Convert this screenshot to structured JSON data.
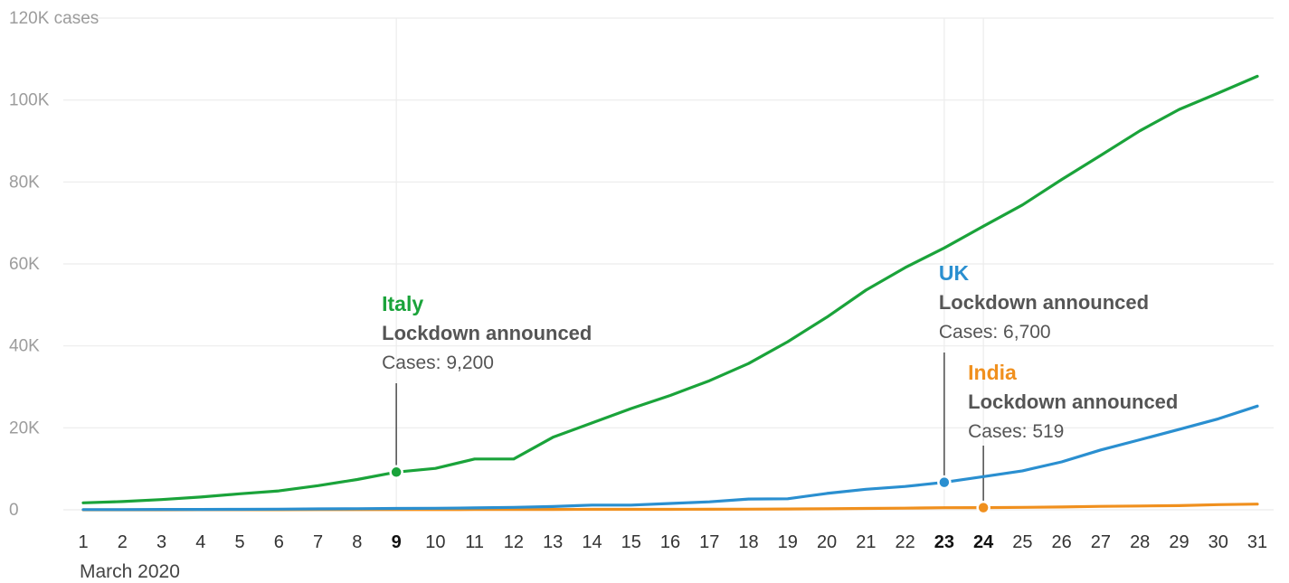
{
  "chart_data": {
    "type": "line",
    "xlabel": "March 2020",
    "ylim": [
      0,
      120000
    ],
    "yticks": [
      {
        "value": 0,
        "label": "0"
      },
      {
        "value": 20000,
        "label": "20K"
      },
      {
        "value": 40000,
        "label": "40K"
      },
      {
        "value": 60000,
        "label": "60K"
      },
      {
        "value": 80000,
        "label": "80K"
      },
      {
        "value": 100000,
        "label": "100K"
      },
      {
        "value": 120000,
        "label": "120K cases"
      }
    ],
    "x": [
      1,
      2,
      3,
      4,
      5,
      6,
      7,
      8,
      9,
      10,
      11,
      12,
      13,
      14,
      15,
      16,
      17,
      18,
      19,
      20,
      21,
      22,
      23,
      24,
      25,
      26,
      27,
      28,
      29,
      30,
      31
    ],
    "highlighted_x": [
      9,
      23,
      24
    ],
    "series": [
      {
        "name": "Italy",
        "color": "#1aa33a",
        "values": [
          1700,
          2000,
          2500,
          3100,
          3900,
          4600,
          5900,
          7400,
          9200,
          10100,
          12400,
          12400,
          17700,
          21200,
          24700,
          27900,
          31500,
          35700,
          41000,
          47000,
          53600,
          59100,
          63900,
          69200,
          74400,
          80600,
          86500,
          92500,
          97700,
          101700,
          105800
        ]
      },
      {
        "name": "UK",
        "color": "#2a8fd0",
        "values": [
          40,
          50,
          80,
          90,
          120,
          160,
          210,
          270,
          320,
          380,
          460,
          590,
          800,
          1140,
          1140,
          1550,
          1950,
          2630,
          2690,
          4000,
          5000,
          5700,
          6700,
          8100,
          9500,
          11700,
          14600,
          17100,
          19600,
          22200,
          25300
        ]
      },
      {
        "name": "India",
        "color": "#f0901e",
        "values": [
          3,
          3,
          5,
          28,
          30,
          31,
          34,
          39,
          43,
          50,
          73,
          75,
          82,
          102,
          113,
          119,
          142,
          156,
          194,
          244,
          330,
          396,
          499,
          519,
          606,
          694,
          834,
          918,
          1024,
          1251,
          1397
        ]
      }
    ],
    "annotations": [
      {
        "series": "Italy",
        "x": 9,
        "y": 9200,
        "name": "Italy",
        "event": "Lockdown announced",
        "cases": "Cases: 9,200"
      },
      {
        "series": "UK",
        "x": 23,
        "y": 6700,
        "name": "UK",
        "event": "Lockdown announced",
        "cases": "Cases: 6,700"
      },
      {
        "series": "India",
        "x": 24,
        "y": 519,
        "name": "India",
        "event": "Lockdown announced",
        "cases": "Cases: 519"
      }
    ],
    "grid": true
  }
}
